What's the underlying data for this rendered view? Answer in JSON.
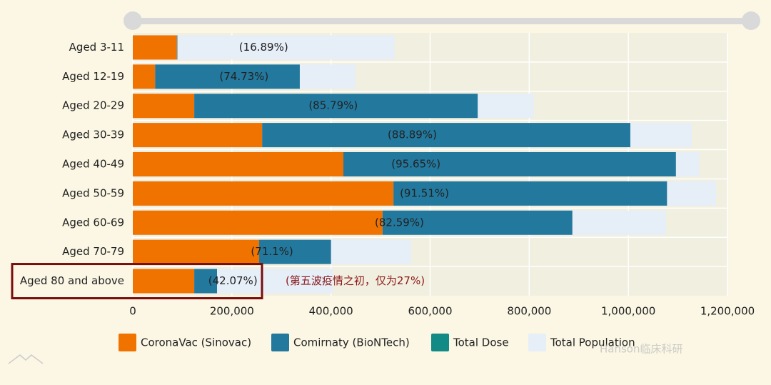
{
  "chart_data": {
    "type": "bar",
    "orientation": "horizontal",
    "categories": [
      "Aged 3-11",
      "Aged 12-19",
      "Aged 20-29",
      "Aged 30-39",
      "Aged 40-49",
      "Aged 50-59",
      "Aged 60-69",
      "Aged 70-79",
      "Aged 80 and above"
    ],
    "series": [
      {
        "name": "CoronaVac (Sinovac)",
        "color": "#f07300",
        "stack": "dose",
        "values": [
          89000,
          45000,
          124000,
          261000,
          425000,
          526000,
          504000,
          255000,
          124000
        ]
      },
      {
        "name": "Comirnaty (BioNTech)",
        "color": "#23789e",
        "stack": "dose",
        "values": [
          1000,
          292000,
          572000,
          743000,
          671000,
          552000,
          383000,
          145000,
          46000
        ]
      },
      {
        "name": "Total Dose",
        "color": "#128a86",
        "stack": "none",
        "values": [
          null,
          null,
          null,
          null,
          null,
          null,
          null,
          null,
          null
        ]
      },
      {
        "name": "Total Population",
        "color": "#e6eef8",
        "stack": "population",
        "values": [
          528000,
          449000,
          809000,
          1128000,
          1143000,
          1177000,
          1076000,
          562000,
          404000
        ]
      }
    ],
    "bar_labels": [
      "(16.89%)",
      "(74.73%)",
      "(85.79%)",
      "(88.89%)",
      "(95.65%)",
      "(91.51%)",
      "(82.59%)",
      "(71.1%)",
      "(42.07%)"
    ],
    "annotation": "(第五波疫情之初，仅为27%)",
    "watermark": "Hanson临床科研",
    "xlim": [
      0,
      1200000
    ],
    "xticks": [
      0,
      {
        "value": 200000,
        "label": "200,000"
      },
      {
        "value": 400000,
        "label": "400,000"
      },
      {
        "value": 600000,
        "label": "600,000"
      },
      {
        "value": 800000,
        "label": "800,000"
      },
      {
        "value": 1000000,
        "label": "1,000,000"
      },
      {
        "value": 1200000,
        "label": "1,200,000"
      }
    ],
    "grid": true,
    "legend": "bottom"
  }
}
